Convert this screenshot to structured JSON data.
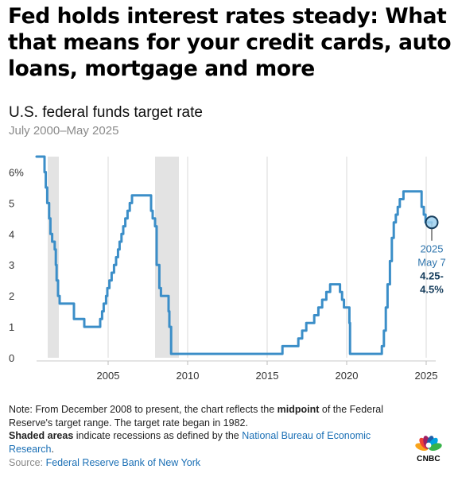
{
  "headline": "Fed holds interest rates steady: What that means for your credit cards, auto loans, mortgage and more",
  "chart_data": {
    "type": "line",
    "title": "U.S. federal funds target rate",
    "subtitle": "July 2000–May 2025",
    "y_tick_labels": [
      "0",
      "1",
      "2",
      "3",
      "4",
      "5",
      "6%"
    ],
    "y_ticks": [
      0,
      1,
      2,
      3,
      4,
      5,
      6
    ],
    "x_tick_labels": [
      "2005",
      "2010",
      "2015",
      "2020",
      "2025"
    ],
    "x_ticks": [
      2005,
      2010,
      2015,
      2020,
      2025
    ],
    "ylim": [
      0,
      6.5
    ],
    "xlim": [
      2000.5,
      2025.6
    ],
    "grid": "vertical",
    "recessions": [
      [
        2001.2,
        2001.9
      ],
      [
        2007.95,
        2009.45
      ]
    ],
    "series": [
      {
        "color": "#3b8ec8",
        "points": [
          [
            2000.5,
            6.5
          ],
          [
            2001.0,
            6.5
          ],
          [
            2001.0,
            6.0
          ],
          [
            2001.08,
            6.0
          ],
          [
            2001.08,
            5.5
          ],
          [
            2001.17,
            5.5
          ],
          [
            2001.17,
            5.0
          ],
          [
            2001.29,
            5.0
          ],
          [
            2001.29,
            4.5
          ],
          [
            2001.37,
            4.5
          ],
          [
            2001.37,
            4.0
          ],
          [
            2001.48,
            4.0
          ],
          [
            2001.48,
            3.75
          ],
          [
            2001.64,
            3.75
          ],
          [
            2001.64,
            3.5
          ],
          [
            2001.71,
            3.5
          ],
          [
            2001.71,
            3.0
          ],
          [
            2001.76,
            3.0
          ],
          [
            2001.76,
            2.5
          ],
          [
            2001.85,
            2.5
          ],
          [
            2001.85,
            2.0
          ],
          [
            2001.95,
            2.0
          ],
          [
            2001.95,
            1.75
          ],
          [
            2002.85,
            1.75
          ],
          [
            2002.85,
            1.25
          ],
          [
            2003.5,
            1.25
          ],
          [
            2003.5,
            1.0
          ],
          [
            2004.5,
            1.0
          ],
          [
            2004.5,
            1.25
          ],
          [
            2004.62,
            1.25
          ],
          [
            2004.62,
            1.5
          ],
          [
            2004.72,
            1.5
          ],
          [
            2004.72,
            1.75
          ],
          [
            2004.87,
            1.75
          ],
          [
            2004.87,
            2.0
          ],
          [
            2004.95,
            2.0
          ],
          [
            2004.95,
            2.25
          ],
          [
            2005.08,
            2.25
          ],
          [
            2005.08,
            2.5
          ],
          [
            2005.22,
            2.5
          ],
          [
            2005.22,
            2.75
          ],
          [
            2005.37,
            2.75
          ],
          [
            2005.37,
            3.0
          ],
          [
            2005.5,
            3.0
          ],
          [
            2005.5,
            3.25
          ],
          [
            2005.62,
            3.25
          ],
          [
            2005.62,
            3.5
          ],
          [
            2005.72,
            3.5
          ],
          [
            2005.72,
            3.75
          ],
          [
            2005.84,
            3.75
          ],
          [
            2005.84,
            4.0
          ],
          [
            2005.95,
            4.0
          ],
          [
            2005.95,
            4.25
          ],
          [
            2006.08,
            4.25
          ],
          [
            2006.08,
            4.5
          ],
          [
            2006.22,
            4.5
          ],
          [
            2006.22,
            4.75
          ],
          [
            2006.36,
            4.75
          ],
          [
            2006.36,
            5.0
          ],
          [
            2006.5,
            5.0
          ],
          [
            2006.5,
            5.25
          ],
          [
            2007.7,
            5.25
          ],
          [
            2007.7,
            4.75
          ],
          [
            2007.8,
            4.75
          ],
          [
            2007.8,
            4.5
          ],
          [
            2007.95,
            4.5
          ],
          [
            2007.95,
            4.25
          ],
          [
            2008.05,
            4.25
          ],
          [
            2008.05,
            3.0
          ],
          [
            2008.22,
            3.0
          ],
          [
            2008.22,
            2.25
          ],
          [
            2008.32,
            2.25
          ],
          [
            2008.32,
            2.0
          ],
          [
            2008.8,
            2.0
          ],
          [
            2008.8,
            1.5
          ],
          [
            2008.85,
            1.5
          ],
          [
            2008.85,
            1.0
          ],
          [
            2008.96,
            1.0
          ],
          [
            2008.96,
            0.125
          ],
          [
            2015.96,
            0.125
          ],
          [
            2015.96,
            0.375
          ],
          [
            2016.96,
            0.375
          ],
          [
            2016.96,
            0.625
          ],
          [
            2017.2,
            0.625
          ],
          [
            2017.2,
            0.875
          ],
          [
            2017.46,
            0.875
          ],
          [
            2017.46,
            1.125
          ],
          [
            2017.96,
            1.125
          ],
          [
            2017.96,
            1.375
          ],
          [
            2018.22,
            1.375
          ],
          [
            2018.22,
            1.625
          ],
          [
            2018.46,
            1.625
          ],
          [
            2018.46,
            1.875
          ],
          [
            2018.72,
            1.875
          ],
          [
            2018.72,
            2.125
          ],
          [
            2018.96,
            2.125
          ],
          [
            2018.96,
            2.375
          ],
          [
            2019.58,
            2.375
          ],
          [
            2019.58,
            2.125
          ],
          [
            2019.71,
            2.125
          ],
          [
            2019.71,
            1.875
          ],
          [
            2019.83,
            1.875
          ],
          [
            2019.83,
            1.625
          ],
          [
            2020.17,
            1.625
          ],
          [
            2020.17,
            1.125
          ],
          [
            2020.21,
            1.125
          ],
          [
            2020.21,
            0.125
          ],
          [
            2022.21,
            0.125
          ],
          [
            2022.21,
            0.375
          ],
          [
            2022.34,
            0.375
          ],
          [
            2022.34,
            0.875
          ],
          [
            2022.46,
            0.875
          ],
          [
            2022.46,
            1.625
          ],
          [
            2022.57,
            1.625
          ],
          [
            2022.57,
            2.375
          ],
          [
            2022.72,
            2.375
          ],
          [
            2022.72,
            3.125
          ],
          [
            2022.84,
            3.125
          ],
          [
            2022.84,
            3.875
          ],
          [
            2022.96,
            3.875
          ],
          [
            2022.96,
            4.375
          ],
          [
            2023.09,
            4.375
          ],
          [
            2023.09,
            4.625
          ],
          [
            2023.21,
            4.625
          ],
          [
            2023.21,
            4.875
          ],
          [
            2023.34,
            4.875
          ],
          [
            2023.34,
            5.125
          ],
          [
            2023.57,
            5.125
          ],
          [
            2023.57,
            5.375
          ],
          [
            2024.71,
            5.375
          ],
          [
            2024.71,
            4.875
          ],
          [
            2024.85,
            4.875
          ],
          [
            2024.85,
            4.625
          ],
          [
            2024.96,
            4.625
          ],
          [
            2024.96,
            4.375
          ],
          [
            2025.35,
            4.375
          ]
        ]
      }
    ],
    "annotation": {
      "x": 2025.35,
      "y": 4.375,
      "date_line1": "2025",
      "date_line2": "May 7",
      "value_line1": "4.25-",
      "value_line2": "4.5%"
    }
  },
  "footnote": {
    "note_prefix": "Note: From December 2008 to present, the chart reflects the ",
    "note_bold": "midpoint",
    "note_suffix": " of the Federal Reserve's target range. The target rate began in 1982.",
    "shaded_bold": "Shaded areas",
    "shaded_text": " indicate recessions as defined by the ",
    "shaded_link": "National Bureau of Economic Research",
    "shaded_end": ".",
    "source_label": "Source: ",
    "source_link": "Federal Reserve Bank of New York"
  },
  "logo": {
    "text": "CNBC",
    "colors": [
      "#f9a31b",
      "#ef4136",
      "#9e1f63",
      "#1f5fa8",
      "#00a3e0",
      "#37b34a"
    ]
  }
}
